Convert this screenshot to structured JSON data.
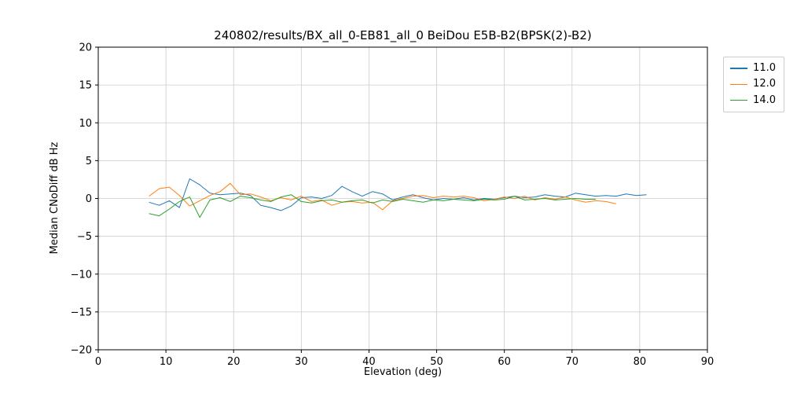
{
  "figure": {
    "title": "240802/results/BX_all_0-EB81_all_0 BeiDou E5B-B2(BPSK(2)-B2)"
  },
  "chart_data": {
    "type": "line",
    "title": "240802/results/BX_all_0-EB81_all_0 BeiDou E5B-B2(BPSK(2)-B2)",
    "xlabel": "Elevation (deg)",
    "ylabel": "Median CNoDiff dB Hz",
    "xlim": [
      0,
      90
    ],
    "ylim": [
      -20,
      20
    ],
    "xticks": [
      0,
      10,
      20,
      30,
      40,
      50,
      60,
      70,
      80,
      90
    ],
    "yticks": [
      -20,
      -15,
      -10,
      -5,
      0,
      5,
      10,
      15,
      20
    ],
    "grid": true,
    "legend_position": "outside-top-right",
    "series": [
      {
        "name": "11.0",
        "color": "#1f77b4",
        "x": [
          7.5,
          9,
          10.5,
          12,
          13.5,
          15,
          16.5,
          18,
          19.5,
          21,
          22.5,
          24,
          25.5,
          27,
          28.5,
          30,
          31.5,
          33,
          34.5,
          36,
          37.5,
          39,
          40.5,
          42,
          43.5,
          45,
          46.5,
          48,
          49.5,
          51,
          52.5,
          54,
          55.5,
          57,
          58.5,
          60,
          61.5,
          63,
          64.5,
          66,
          67.5,
          69,
          70.5,
          72,
          73.5,
          75,
          76.5,
          78,
          79.5,
          81
        ],
        "y": [
          -0.5,
          -0.9,
          -0.3,
          -1.2,
          2.6,
          1.8,
          0.7,
          0.5,
          0.6,
          0.7,
          0.4,
          -0.9,
          -1.2,
          -1.6,
          -1.0,
          0.1,
          0.2,
          0.0,
          0.4,
          1.6,
          0.9,
          0.3,
          0.9,
          0.6,
          -0.2,
          0.2,
          0.5,
          0.1,
          -0.2,
          0.0,
          -0.1,
          0.1,
          -0.2,
          0.0,
          -0.1,
          0.1,
          0.3,
          0.1,
          0.2,
          0.5,
          0.3,
          0.2,
          0.7,
          0.5,
          0.3,
          0.4,
          0.3,
          0.6,
          0.4,
          0.5
        ]
      },
      {
        "name": "12.0",
        "color": "#ff7f0e",
        "x": [
          7.5,
          9,
          10.5,
          12,
          13.5,
          15,
          16.5,
          18,
          19.5,
          21,
          22.5,
          24,
          25.5,
          27,
          28.5,
          30,
          31.5,
          33,
          34.5,
          36,
          37.5,
          39,
          40.5,
          42,
          43.5,
          45,
          46.5,
          48,
          49.5,
          51,
          52.5,
          54,
          55.5,
          57,
          58.5,
          60,
          61.5,
          63,
          64.5,
          66,
          67.5,
          69,
          70.5,
          72,
          73.5,
          75,
          76.5
        ],
        "y": [
          0.3,
          1.3,
          1.5,
          0.4,
          -1.0,
          -0.3,
          0.4,
          0.9,
          2.0,
          0.5,
          0.6,
          0.2,
          -0.3,
          0.1,
          -0.2,
          0.3,
          -0.4,
          -0.2,
          -0.9,
          -0.5,
          -0.4,
          -0.6,
          -0.5,
          -1.5,
          -0.3,
          0.0,
          0.3,
          0.4,
          0.1,
          0.3,
          0.2,
          0.3,
          0.1,
          -0.3,
          -0.1,
          0.2,
          0.0,
          0.3,
          -0.2,
          0.1,
          -0.1,
          0.2,
          -0.2,
          -0.5,
          -0.3,
          -0.4,
          -0.7
        ]
      },
      {
        "name": "14.0",
        "color": "#2ca02c",
        "x": [
          7.5,
          9,
          10.5,
          12,
          13.5,
          15,
          16.5,
          18,
          19.5,
          21,
          22.5,
          24,
          25.5,
          27,
          28.5,
          30,
          31.5,
          33,
          34.5,
          36,
          37.5,
          39,
          40.5,
          42,
          43.5,
          45,
          46.5,
          48,
          49.5,
          51,
          52.5,
          54,
          55.5,
          57,
          58.5,
          60,
          61.5,
          63,
          64.5,
          66,
          67.5,
          69,
          70.5,
          72,
          73.5
        ],
        "y": [
          -2.0,
          -2.3,
          -1.4,
          -0.4,
          0.2,
          -2.5,
          -0.2,
          0.1,
          -0.4,
          0.3,
          0.1,
          -0.2,
          -0.4,
          0.2,
          0.5,
          -0.4,
          -0.6,
          -0.3,
          -0.2,
          -0.5,
          -0.3,
          -0.2,
          -0.6,
          -0.2,
          -0.4,
          -0.1,
          -0.3,
          -0.5,
          -0.2,
          -0.3,
          -0.1,
          -0.2,
          -0.3,
          -0.1,
          -0.2,
          -0.1,
          0.3,
          -0.2,
          -0.1,
          0.0,
          -0.2,
          -0.1,
          0.0,
          -0.1,
          -0.1
        ]
      }
    ]
  }
}
